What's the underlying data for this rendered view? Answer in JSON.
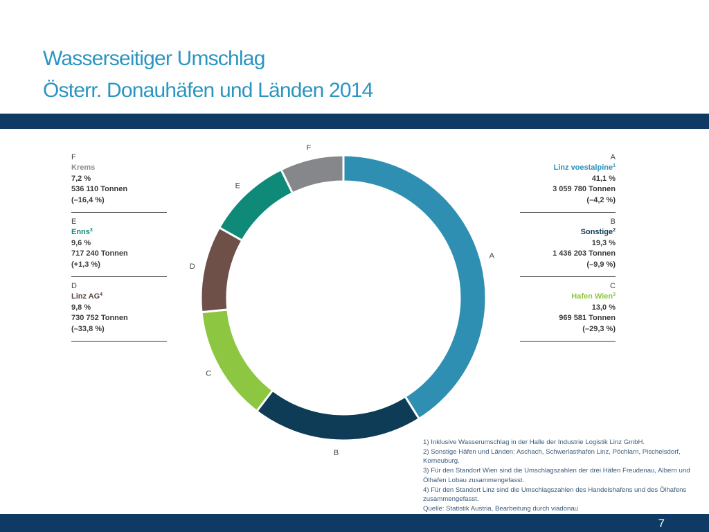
{
  "slide": {
    "title_line1": "Wasserseitiger Umschlag",
    "title_line2": "Österr. Donauhäfen und Länden 2014",
    "page_number": "7"
  },
  "colors": {
    "brand_blue": "#2b95c2",
    "band_navy": "#0f3a63"
  },
  "chart_data": {
    "type": "pie",
    "donut": true,
    "start_angle_deg": 0,
    "direction": "clockwise",
    "slices": [
      {
        "letter": "A",
        "name": "Linz voestalpine",
        "sup": "1",
        "value": 41.1,
        "percent_text": "41,1 %",
        "tonnes": "3 059 780 Tonnen",
        "change": "(–4,2 %)",
        "color": "#2f8fb3",
        "name_color": "#2a90bd"
      },
      {
        "letter": "B",
        "name": "Sonstige",
        "sup": "2",
        "value": 19.3,
        "percent_text": "19,3 %",
        "tonnes": "1 436 203 Tonnen",
        "change": "(–9,9 %)",
        "color": "#0e3b55",
        "name_color": "#0f3a5a"
      },
      {
        "letter": "C",
        "name": "Hafen Wien",
        "sup": "3",
        "value": 13.0,
        "percent_text": "13,0 %",
        "tonnes": "969 581 Tonnen",
        "change": "(–29,3 %)",
        "color": "#8dc641",
        "name_color": "#8dc641"
      },
      {
        "letter": "D",
        "name": "Linz AG",
        "sup": "4",
        "value": 9.8,
        "percent_text": "9,8 %",
        "tonnes": "730 752 Tonnen",
        "change": "(–33,8 %)",
        "color": "#6e5048",
        "name_color": "#5a4540"
      },
      {
        "letter": "E",
        "name": "Enns",
        "sup": "3",
        "value": 9.6,
        "percent_text": "9,6 %",
        "tonnes": "717 240 Tonnen",
        "change": "(+1,3 %)",
        "color": "#0f8a78",
        "name_color": "#0f8a78"
      },
      {
        "letter": "F",
        "name": "Krems",
        "sup": "",
        "value": 7.2,
        "percent_text": "7,2 %",
        "tonnes": "536 110 Tonnen",
        "change": "(–16,4 %)",
        "color": "#86878b",
        "name_color": "#8a8b8f"
      }
    ]
  },
  "footnotes": [
    "1) Inklusive Wasserumschlag in der Halle der Industrie Logistik Linz GmbH.",
    "2) Sonstige Häfen und Länden: Aschach, Schwerlasthafen Linz, Pöchlarn, Pischelsdorf, Korneuburg.",
    "3) Für den Standort Wien sind die Umschlagszahlen der drei Häfen Freudenau, Albern und Ölhafen Lobau zusammengefasst.",
    "4) Für den Standort Linz sind die Umschlagszahlen des Handelshafens und des Ölhafens zusammengefasst.",
    "Quelle: Statistik Austria, Bearbeitung durch viadonau"
  ]
}
